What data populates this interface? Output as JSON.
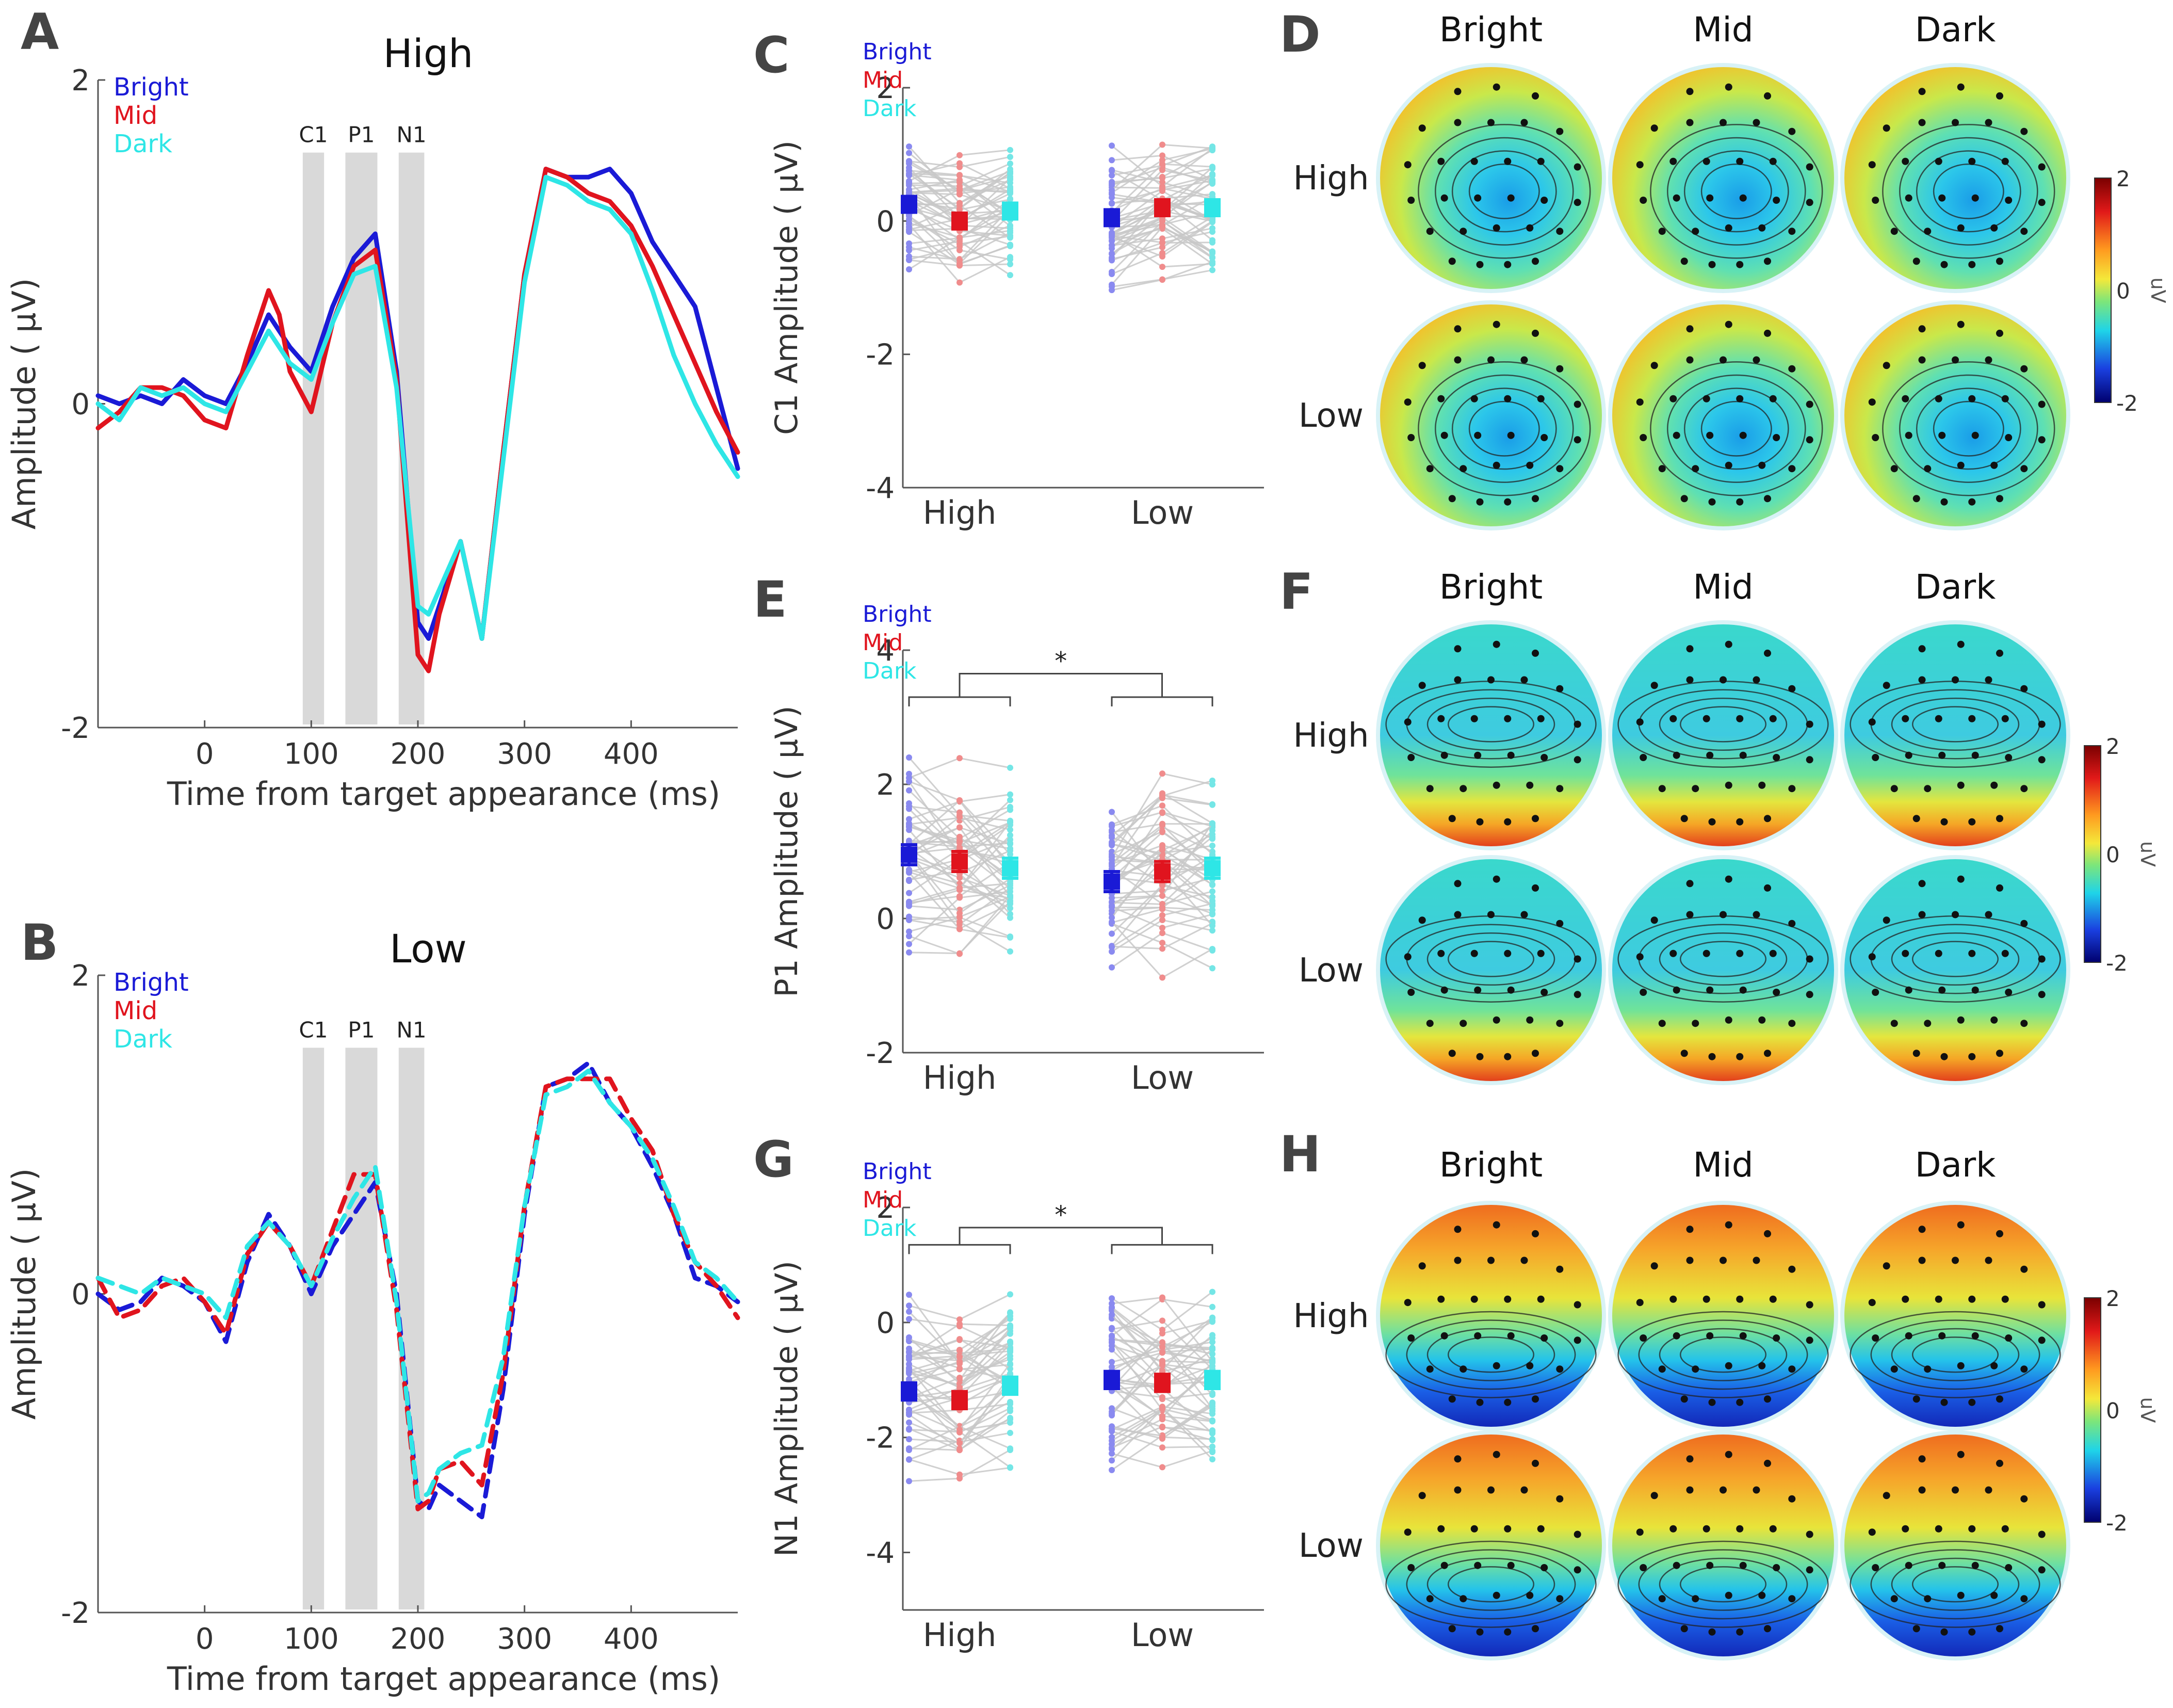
{
  "colors": {
    "bright": "#1a1ad6",
    "mid": "#e0141e",
    "dark": "#2ee6e6",
    "bright_light": "#8a8af0",
    "mid_light": "#f08c8c",
    "dark_light": "#74e6e6",
    "band": "#d9d9d9",
    "pair_line": "#c8c8c8",
    "axis": "#555555"
  },
  "legend": {
    "bright": "Bright",
    "mid": "Mid",
    "dark": "Dark"
  },
  "panel_letters": {
    "A": "A",
    "B": "B",
    "C": "C",
    "D": "D",
    "E": "E",
    "F": "F",
    "G": "G",
    "H": "H"
  },
  "topo": {
    "col_titles": [
      "Bright",
      "Mid",
      "Dark"
    ],
    "row_labels": [
      "High",
      "Low"
    ],
    "colorbar": {
      "unit": "uV",
      "ticks": [
        "2",
        "0",
        "-2"
      ]
    }
  },
  "chart_data": [
    {
      "id": "A",
      "type": "line",
      "title": "High",
      "xlabel": "Time from target appearance (ms)",
      "ylabel": "Amplitude ( μV)",
      "xlim": [
        -100,
        500
      ],
      "ylim": [
        -2,
        2
      ],
      "xticks": [
        "0",
        "100",
        "200",
        "300",
        "400"
      ],
      "yticks": [
        "-2",
        "0",
        "2"
      ],
      "line_style": "solid",
      "bands": [
        {
          "label": "C1",
          "x0": 92,
          "x1": 112
        },
        {
          "label": "P1",
          "x0": 132,
          "x1": 162
        },
        {
          "label": "N1",
          "x0": 182,
          "x1": 206
        }
      ],
      "x": [
        -100,
        -80,
        -60,
        -40,
        -20,
        0,
        20,
        40,
        60,
        70,
        80,
        100,
        120,
        140,
        160,
        180,
        200,
        210,
        220,
        240,
        260,
        280,
        300,
        320,
        340,
        360,
        380,
        400,
        420,
        440,
        460,
        480,
        500
      ],
      "series": [
        {
          "name": "Bright",
          "values": [
            0.05,
            0.0,
            0.05,
            0.0,
            0.15,
            0.05,
            0.0,
            0.25,
            0.55,
            0.45,
            0.35,
            0.2,
            0.6,
            0.9,
            1.05,
            0.2,
            -1.35,
            -1.45,
            -1.25,
            -0.85,
            -1.45,
            -0.3,
            0.8,
            1.45,
            1.4,
            1.4,
            1.45,
            1.3,
            1.0,
            0.8,
            0.6,
            0.1,
            -0.4
          ]
        },
        {
          "name": "Mid",
          "values": [
            -0.15,
            -0.05,
            0.1,
            0.1,
            0.05,
            -0.1,
            -0.15,
            0.3,
            0.7,
            0.55,
            0.2,
            -0.05,
            0.5,
            0.85,
            0.95,
            0.15,
            -1.55,
            -1.65,
            -1.3,
            -0.85,
            -1.45,
            -0.3,
            0.8,
            1.45,
            1.4,
            1.3,
            1.25,
            1.1,
            0.85,
            0.55,
            0.25,
            -0.05,
            -0.3
          ]
        },
        {
          "name": "Dark",
          "values": [
            0.0,
            -0.1,
            0.1,
            0.05,
            0.1,
            0.0,
            -0.05,
            0.2,
            0.45,
            0.35,
            0.25,
            0.15,
            0.5,
            0.8,
            0.85,
            0.1,
            -1.25,
            -1.3,
            -1.15,
            -0.85,
            -1.45,
            -0.35,
            0.75,
            1.4,
            1.35,
            1.25,
            1.2,
            1.05,
            0.7,
            0.3,
            0.0,
            -0.25,
            -0.45
          ]
        }
      ]
    },
    {
      "id": "B",
      "type": "line",
      "title": "Low",
      "xlabel": "Time from target appearance (ms)",
      "ylabel": "Amplitude ( μV)",
      "xlim": [
        -100,
        500
      ],
      "ylim": [
        -2,
        2
      ],
      "xticks": [
        "0",
        "100",
        "200",
        "300",
        "400"
      ],
      "yticks": [
        "-2",
        "0",
        "2"
      ],
      "line_style": "dashed",
      "bands": [
        {
          "label": "C1",
          "x0": 92,
          "x1": 112
        },
        {
          "label": "P1",
          "x0": 132,
          "x1": 162
        },
        {
          "label": "N1",
          "x0": 182,
          "x1": 206
        }
      ],
      "x": [
        -100,
        -80,
        -60,
        -40,
        -20,
        0,
        20,
        40,
        60,
        80,
        100,
        120,
        140,
        160,
        180,
        200,
        210,
        220,
        240,
        260,
        280,
        300,
        320,
        340,
        360,
        380,
        400,
        420,
        440,
        460,
        480,
        500
      ],
      "series": [
        {
          "name": "Bright",
          "values": [
            0.0,
            -0.1,
            -0.05,
            0.1,
            0.05,
            -0.05,
            -0.3,
            0.2,
            0.5,
            0.3,
            0.0,
            0.3,
            0.5,
            0.7,
            0.0,
            -1.3,
            -1.35,
            -1.2,
            -1.3,
            -1.4,
            -0.6,
            0.5,
            1.3,
            1.35,
            1.45,
            1.2,
            1.05,
            0.8,
            0.5,
            0.1,
            0.05,
            -0.05
          ]
        },
        {
          "name": "Mid",
          "values": [
            0.1,
            -0.15,
            -0.1,
            0.05,
            0.1,
            -0.05,
            -0.25,
            0.25,
            0.45,
            0.3,
            0.05,
            0.4,
            0.75,
            0.75,
            -0.1,
            -1.35,
            -1.3,
            -1.1,
            -1.05,
            -1.2,
            -0.5,
            0.55,
            1.3,
            1.35,
            1.35,
            1.35,
            1.1,
            0.9,
            0.5,
            0.2,
            0.05,
            -0.15
          ]
        },
        {
          "name": "Dark",
          "values": [
            0.1,
            0.05,
            0.0,
            0.1,
            0.05,
            0.0,
            -0.15,
            0.3,
            0.45,
            0.3,
            0.05,
            0.35,
            0.6,
            0.8,
            -0.05,
            -1.3,
            -1.25,
            -1.1,
            -1.0,
            -0.95,
            -0.4,
            0.55,
            1.25,
            1.3,
            1.4,
            1.2,
            1.05,
            0.85,
            0.55,
            0.2,
            0.1,
            -0.05
          ]
        }
      ]
    },
    {
      "id": "C",
      "type": "scatter",
      "ylabel": "C1 Amplitude ( μV)",
      "categories": [
        "High",
        "Low"
      ],
      "ylim": [
        -4,
        2
      ],
      "yticks": [
        "-4",
        "-2",
        "0",
        "2"
      ],
      "n_subjects": 48,
      "seed": 11,
      "spread": 0.7,
      "means": {
        "High": [
          0.25,
          0.0,
          0.15
        ],
        "Low": [
          0.05,
          0.2,
          0.2
        ]
      },
      "sem": 0.12,
      "significance": []
    },
    {
      "id": "E",
      "type": "scatter",
      "ylabel": "P1 Amplitude ( μV)",
      "categories": [
        "High",
        "Low"
      ],
      "ylim": [
        -2,
        4
      ],
      "yticks": [
        "-2",
        "0",
        "2",
        "4"
      ],
      "n_subjects": 48,
      "seed": 23,
      "spread": 1.0,
      "means": {
        "High": [
          0.95,
          0.85,
          0.75
        ],
        "Low": [
          0.55,
          0.7,
          0.75
        ]
      },
      "sem": 0.15,
      "significance": [
        {
          "label": "*",
          "y": 3.65,
          "y_high_bracket": 3.3,
          "y_low_bracket": 3.3
        }
      ]
    },
    {
      "id": "G",
      "type": "scatter",
      "ylabel": "N1 Amplitude ( μV)",
      "categories": [
        "High",
        "Low"
      ],
      "ylim": [
        -5,
        2
      ],
      "yticks": [
        "-4",
        "-2",
        "0",
        "2"
      ],
      "n_subjects": 48,
      "seed": 37,
      "spread": 1.1,
      "means": {
        "High": [
          -1.2,
          -1.35,
          -1.1
        ],
        "Low": [
          -1.0,
          -1.05,
          -1.0
        ]
      },
      "sem": 0.15,
      "significance": [
        {
          "label": "*",
          "y": 1.65,
          "y_high_bracket": 1.35,
          "y_low_bracket": 1.35
        }
      ]
    }
  ]
}
